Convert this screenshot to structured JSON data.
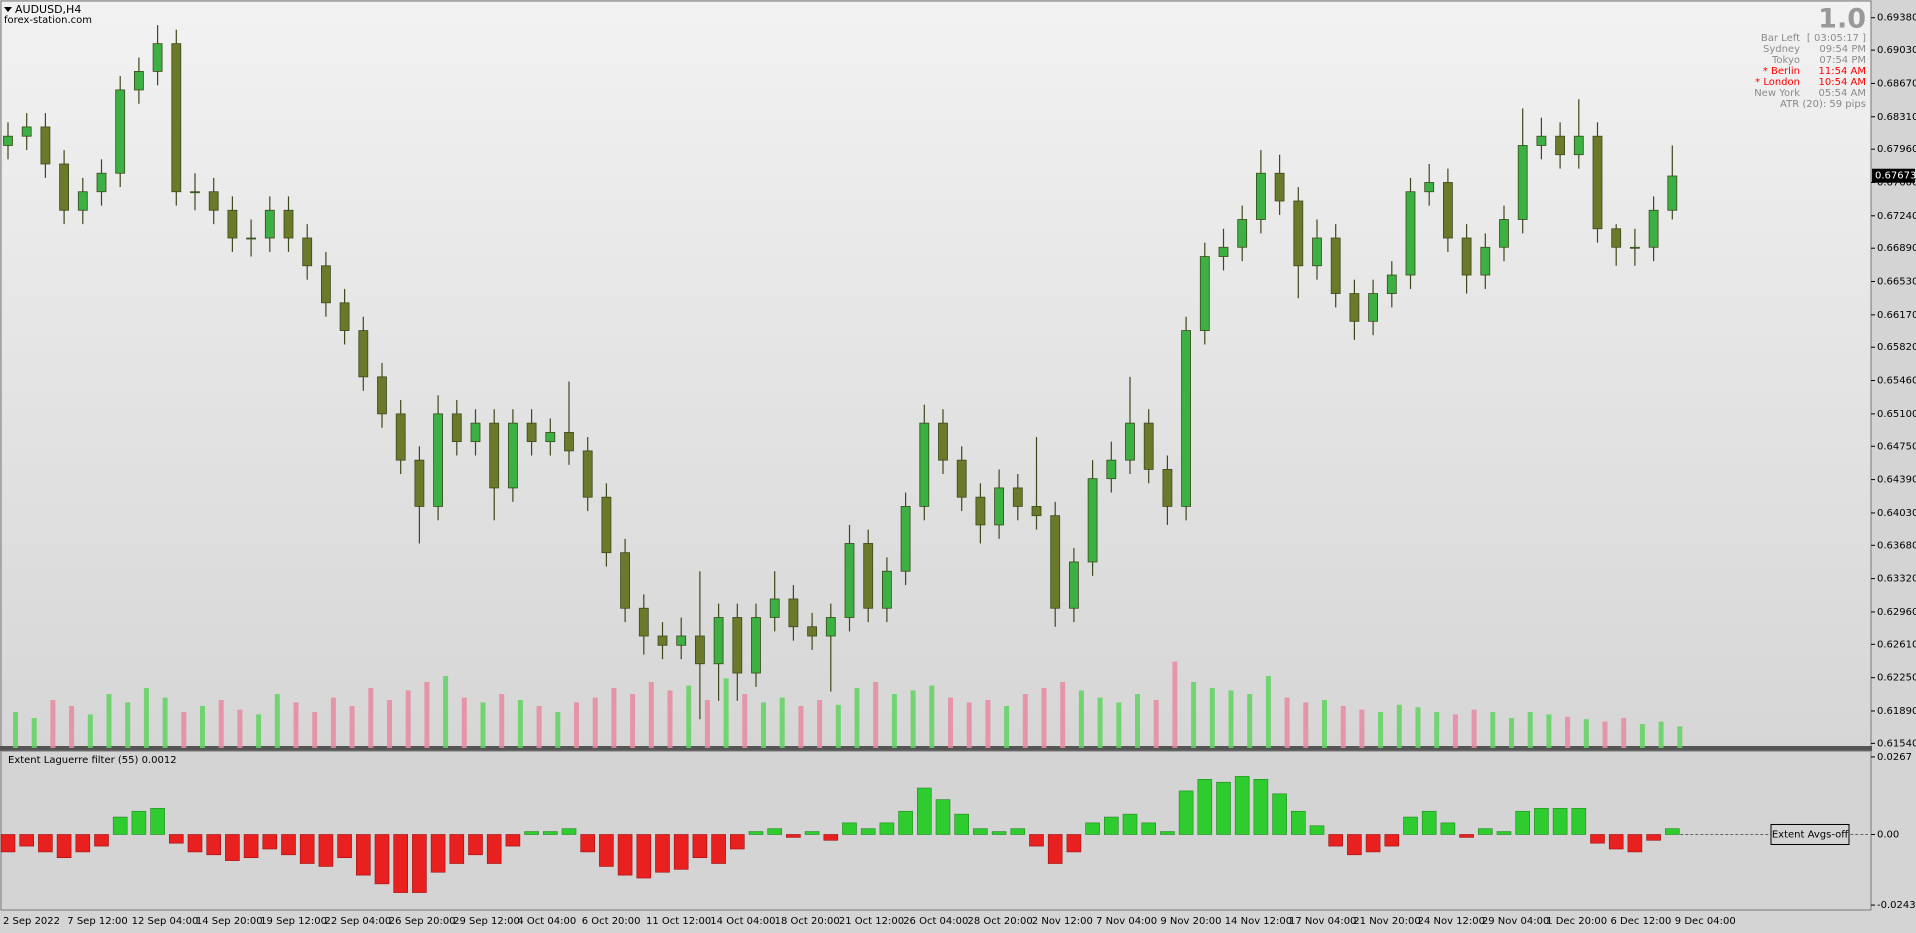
{
  "header": {
    "symbol": "AUDUSD,H4",
    "site": "forex-station.com",
    "version": "1.0"
  },
  "info_panel": {
    "rows": [
      {
        "name": "Bar Left",
        "value": "[ 03:05:17 ]",
        "color": "#8c8c8c"
      },
      {
        "name": "Sydney",
        "value": "09:54 PM",
        "color": "#8c8c8c"
      },
      {
        "name": "Tokyo",
        "value": "07:54 PM",
        "color": "#8c8c8c"
      },
      {
        "name": "* Berlin",
        "value": "11:54 AM",
        "color": "#ff0000"
      },
      {
        "name": "* London",
        "value": "10:54 AM",
        "color": "#ff0000"
      },
      {
        "name": "New York",
        "value": "05:54 AM",
        "color": "#8c8c8c"
      }
    ],
    "atr": "ATR (20): 59 pips"
  },
  "chart_data": [
    {
      "type": "candlestick",
      "up_color": "#3cb043",
      "down_color": "#6b7a2a",
      "volume_up_color": "#5fd35f",
      "volume_down_color": "#e88aa0",
      "ylim": [
        0.6149,
        0.6955
      ],
      "yticks": [
        {
          "value": 0.6938,
          "label": "0.69380"
        },
        {
          "value": 0.6903,
          "label": "0.69030"
        },
        {
          "value": 0.6867,
          "label": "0.68670"
        },
        {
          "value": 0.6831,
          "label": "0.68310"
        },
        {
          "value": 0.6796,
          "label": "0.67960"
        },
        {
          "value": 0.676,
          "label": "0.67600"
        },
        {
          "value": 0.6724,
          "label": "0.67240"
        },
        {
          "value": 0.6689,
          "label": "0.66890"
        },
        {
          "value": 0.6653,
          "label": "0.66530"
        },
        {
          "value": 0.6617,
          "label": "0.66170"
        },
        {
          "value": 0.6582,
          "label": "0.65820"
        },
        {
          "value": 0.6546,
          "label": "0.65460"
        },
        {
          "value": 0.651,
          "label": "0.65100"
        },
        {
          "value": 0.6475,
          "label": "0.64750"
        },
        {
          "value": 0.6439,
          "label": "0.64390"
        },
        {
          "value": 0.6403,
          "label": "0.64030"
        },
        {
          "value": 0.6368,
          "label": "0.63680"
        },
        {
          "value": 0.6332,
          "label": "0.63320"
        },
        {
          "value": 0.6296,
          "label": "0.62960"
        },
        {
          "value": 0.6261,
          "label": "0.62610"
        },
        {
          "value": 0.6225,
          "label": "0.62250"
        },
        {
          "value": 0.6189,
          "label": "0.61890"
        },
        {
          "value": 0.6154,
          "label": "0.61540"
        }
      ],
      "current_price": {
        "value": 0.67673,
        "label": "0.67673"
      },
      "candles": [
        [
          0.68,
          0.6825,
          0.6785,
          0.681
        ],
        [
          0.681,
          0.6835,
          0.6795,
          0.682
        ],
        [
          0.682,
          0.6835,
          0.6765,
          0.678
        ],
        [
          0.678,
          0.6795,
          0.6715,
          0.673
        ],
        [
          0.673,
          0.6765,
          0.6715,
          0.675
        ],
        [
          0.675,
          0.6785,
          0.6735,
          0.677
        ],
        [
          0.677,
          0.6875,
          0.6755,
          0.686
        ],
        [
          0.686,
          0.6895,
          0.6845,
          0.688
        ],
        [
          0.688,
          0.693,
          0.6865,
          0.691
        ],
        [
          0.691,
          0.6925,
          0.6735,
          0.675
        ],
        [
          0.675,
          0.677,
          0.673,
          0.675
        ],
        [
          0.675,
          0.6765,
          0.6715,
          0.673
        ],
        [
          0.673,
          0.6745,
          0.6685,
          0.67
        ],
        [
          0.67,
          0.672,
          0.668,
          0.67
        ],
        [
          0.67,
          0.6745,
          0.6685,
          0.673
        ],
        [
          0.673,
          0.6745,
          0.6685,
          0.67
        ],
        [
          0.67,
          0.6715,
          0.6655,
          0.667
        ],
        [
          0.667,
          0.6685,
          0.6615,
          0.663
        ],
        [
          0.663,
          0.6645,
          0.6585,
          0.66
        ],
        [
          0.66,
          0.6615,
          0.6535,
          0.655
        ],
        [
          0.655,
          0.6565,
          0.6495,
          0.651
        ],
        [
          0.651,
          0.6525,
          0.6445,
          0.646
        ],
        [
          0.646,
          0.6475,
          0.637,
          0.641
        ],
        [
          0.641,
          0.653,
          0.6395,
          0.651
        ],
        [
          0.651,
          0.6525,
          0.6465,
          0.648
        ],
        [
          0.648,
          0.6515,
          0.6465,
          0.65
        ],
        [
          0.65,
          0.6515,
          0.6395,
          0.643
        ],
        [
          0.643,
          0.6515,
          0.6415,
          0.65
        ],
        [
          0.65,
          0.6515,
          0.6465,
          0.648
        ],
        [
          0.648,
          0.6505,
          0.6465,
          0.649
        ],
        [
          0.649,
          0.6545,
          0.6455,
          0.647
        ],
        [
          0.647,
          0.6485,
          0.6405,
          0.642
        ],
        [
          0.642,
          0.6435,
          0.6345,
          0.636
        ],
        [
          0.636,
          0.6375,
          0.6285,
          0.63
        ],
        [
          0.63,
          0.6315,
          0.625,
          0.627
        ],
        [
          0.627,
          0.6285,
          0.6245,
          0.626
        ],
        [
          0.626,
          0.629,
          0.6245,
          0.627
        ],
        [
          0.627,
          0.634,
          0.618,
          0.624
        ],
        [
          0.624,
          0.6305,
          0.62,
          0.629
        ],
        [
          0.629,
          0.6305,
          0.62,
          0.623
        ],
        [
          0.623,
          0.6305,
          0.6215,
          0.629
        ],
        [
          0.629,
          0.634,
          0.6275,
          0.631
        ],
        [
          0.631,
          0.6325,
          0.6265,
          0.628
        ],
        [
          0.628,
          0.6295,
          0.6255,
          0.627
        ],
        [
          0.627,
          0.6305,
          0.621,
          0.629
        ],
        [
          0.629,
          0.639,
          0.6275,
          0.637
        ],
        [
          0.637,
          0.6385,
          0.6285,
          0.63
        ],
        [
          0.63,
          0.6355,
          0.6285,
          0.634
        ],
        [
          0.634,
          0.6425,
          0.6325,
          0.641
        ],
        [
          0.641,
          0.652,
          0.6395,
          0.65
        ],
        [
          0.65,
          0.6515,
          0.6445,
          0.646
        ],
        [
          0.646,
          0.6475,
          0.6405,
          0.642
        ],
        [
          0.642,
          0.6435,
          0.637,
          0.639
        ],
        [
          0.639,
          0.645,
          0.6375,
          0.643
        ],
        [
          0.643,
          0.6445,
          0.6395,
          0.641
        ],
        [
          0.641,
          0.6485,
          0.6385,
          0.64
        ],
        [
          0.64,
          0.6415,
          0.628,
          0.63
        ],
        [
          0.63,
          0.6365,
          0.6285,
          0.635
        ],
        [
          0.635,
          0.646,
          0.6335,
          0.644
        ],
        [
          0.644,
          0.648,
          0.6425,
          0.646
        ],
        [
          0.646,
          0.655,
          0.6445,
          0.65
        ],
        [
          0.65,
          0.6515,
          0.6435,
          0.645
        ],
        [
          0.645,
          0.6465,
          0.639,
          0.641
        ],
        [
          0.641,
          0.6615,
          0.6395,
          0.66
        ],
        [
          0.66,
          0.6695,
          0.6585,
          0.668
        ],
        [
          0.668,
          0.671,
          0.6665,
          0.669
        ],
        [
          0.669,
          0.6735,
          0.6675,
          0.672
        ],
        [
          0.672,
          0.6795,
          0.6705,
          0.677
        ],
        [
          0.677,
          0.679,
          0.6725,
          0.674
        ],
        [
          0.674,
          0.6755,
          0.6635,
          0.667
        ],
        [
          0.667,
          0.672,
          0.6655,
          0.67
        ],
        [
          0.67,
          0.6715,
          0.6625,
          0.664
        ],
        [
          0.664,
          0.6655,
          0.659,
          0.661
        ],
        [
          0.661,
          0.6655,
          0.6595,
          0.664
        ],
        [
          0.664,
          0.6675,
          0.6625,
          0.666
        ],
        [
          0.666,
          0.6765,
          0.6645,
          0.675
        ],
        [
          0.675,
          0.678,
          0.6735,
          0.676
        ],
        [
          0.676,
          0.6775,
          0.6685,
          0.67
        ],
        [
          0.67,
          0.6715,
          0.664,
          0.666
        ],
        [
          0.666,
          0.6705,
          0.6645,
          0.669
        ],
        [
          0.669,
          0.6735,
          0.6675,
          0.672
        ],
        [
          0.672,
          0.684,
          0.6705,
          0.68
        ],
        [
          0.68,
          0.683,
          0.6785,
          0.681
        ],
        [
          0.681,
          0.6825,
          0.6775,
          0.679
        ],
        [
          0.679,
          0.685,
          0.6775,
          0.681
        ],
        [
          0.681,
          0.6825,
          0.6695,
          0.671
        ],
        [
          0.671,
          0.6715,
          0.667,
          0.669
        ],
        [
          0.669,
          0.671,
          0.667,
          0.669
        ],
        [
          0.669,
          0.6745,
          0.6675,
          0.673
        ],
        [
          0.673,
          0.68,
          0.672,
          0.6767
        ]
      ],
      "volumes": [
        30,
        25,
        40,
        35,
        28,
        45,
        38,
        50,
        42,
        30,
        35,
        40,
        32,
        28,
        45,
        38,
        30,
        42,
        35,
        50,
        40,
        48,
        55,
        60,
        42,
        38,
        45,
        40,
        35,
        30,
        38,
        42,
        50,
        45,
        55,
        48,
        52,
        40,
        58,
        45,
        38,
        42,
        35,
        40,
        36,
        50,
        55,
        45,
        48,
        52,
        42,
        38,
        40,
        35,
        45,
        50,
        55,
        48,
        42,
        38,
        45,
        40,
        72,
        55,
        50,
        48,
        45,
        60,
        42,
        38,
        40,
        35,
        32,
        30,
        36,
        34,
        30,
        28,
        32,
        30,
        25,
        30,
        28,
        26,
        24,
        22,
        25,
        20,
        22,
        18
      ]
    },
    {
      "type": "histogram",
      "title": "Extent Laguerre filter (55) 0.0012",
      "button": "Extent Avgs-off",
      "positive_color": "#2ecc2e",
      "negative_color": "#e82020",
      "ylim": [
        -0.026,
        0.0284
      ],
      "yticks": [
        0.0267,
        {
          "value": 0,
          "label": "0.00"
        },
        -0.0243
      ],
      "time_labels": [
        "2 Sep 2022",
        "7 Sep 12:00",
        "12 Sep 04:00",
        "14 Sep 20:00",
        "19 Sep 12:00",
        "22 Sep 04:00",
        "26 Sep 20:00",
        "29 Sep 12:00",
        "4 Oct 04:00",
        "6 Oct 20:00",
        "11 Oct 12:00",
        "14 Oct 04:00",
        "18 Oct 20:00",
        "21 Oct 12:00",
        "26 Oct 04:00",
        "28 Oct 20:00",
        "2 Nov 12:00",
        "7 Nov 04:00",
        "9 Nov 20:00",
        "14 Nov 12:00",
        "17 Nov 04:00",
        "21 Nov 20:00",
        "24 Nov 12:00",
        "29 Nov 04:00",
        "1 Dec 20:00",
        "6 Dec 12:00",
        "9 Dec 04:00"
      ],
      "values": [
        -0.006,
        -0.004,
        -0.006,
        -0.008,
        -0.006,
        -0.004,
        0.006,
        0.008,
        0.009,
        -0.003,
        -0.006,
        -0.007,
        -0.009,
        -0.008,
        -0.005,
        -0.007,
        -0.01,
        -0.011,
        -0.008,
        -0.014,
        -0.017,
        -0.02,
        -0.02,
        -0.013,
        -0.01,
        -0.007,
        -0.01,
        -0.004,
        0.001,
        0.001,
        0.002,
        -0.006,
        -0.011,
        -0.014,
        -0.015,
        -0.013,
        -0.012,
        -0.008,
        -0.01,
        -0.005,
        0.001,
        0.002,
        -0.001,
        0.001,
        -0.002,
        0.004,
        0.002,
        0.004,
        0.008,
        0.016,
        0.012,
        0.007,
        0.002,
        0.001,
        0.002,
        -0.004,
        -0.01,
        -0.006,
        0.004,
        0.006,
        0.007,
        0.004,
        0.001,
        0.015,
        0.019,
        0.018,
        0.02,
        0.019,
        0.014,
        0.008,
        0.003,
        -0.004,
        -0.007,
        -0.006,
        -0.004,
        0.006,
        0.008,
        0.004,
        -0.001,
        0.002,
        0.001,
        0.008,
        0.009,
        0.009,
        0.009,
        -0.003,
        -0.005,
        -0.006,
        -0.002,
        0.002
      ]
    }
  ]
}
